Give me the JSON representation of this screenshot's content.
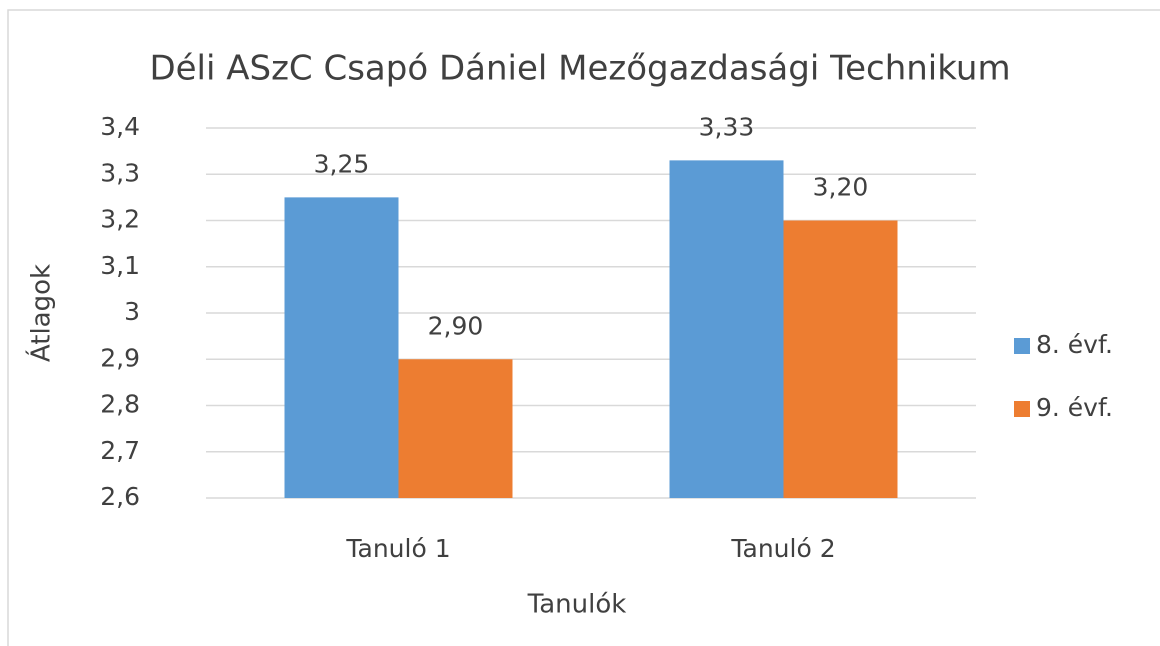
{
  "chart_data": {
    "type": "bar",
    "title": "Déli ASzC Csapó Dániel Mezőgazdasági Technikum",
    "x_label": "Tanulók",
    "y_label": "Átlagok",
    "categories": [
      "Tanuló 1",
      "Tanuló 2"
    ],
    "series": [
      {
        "name": "8. évf.",
        "color": "#5b9bd5",
        "values": [
          3.25,
          3.33
        ],
        "value_labels": [
          "3,25",
          "3,33"
        ]
      },
      {
        "name": "9. évf.",
        "color": "#ed7d31",
        "values": [
          2.9,
          3.2
        ],
        "value_labels": [
          "2,90",
          "3,20"
        ]
      }
    ],
    "ylim": [
      2.6,
      3.4
    ],
    "yticks": [
      {
        "value": 2.6,
        "label": "2,6"
      },
      {
        "value": 2.7,
        "label": "2,7"
      },
      {
        "value": 2.8,
        "label": "2,8"
      },
      {
        "value": 2.9,
        "label": "2,9"
      },
      3,
      {
        "value": 3.1,
        "label": "3,1"
      },
      {
        "value": 3.2,
        "label": "3,2"
      },
      {
        "value": 3.3,
        "label": "3,3"
      },
      {
        "value": 3.4,
        "label": "3,4"
      }
    ],
    "grid": true,
    "legend": "right"
  }
}
